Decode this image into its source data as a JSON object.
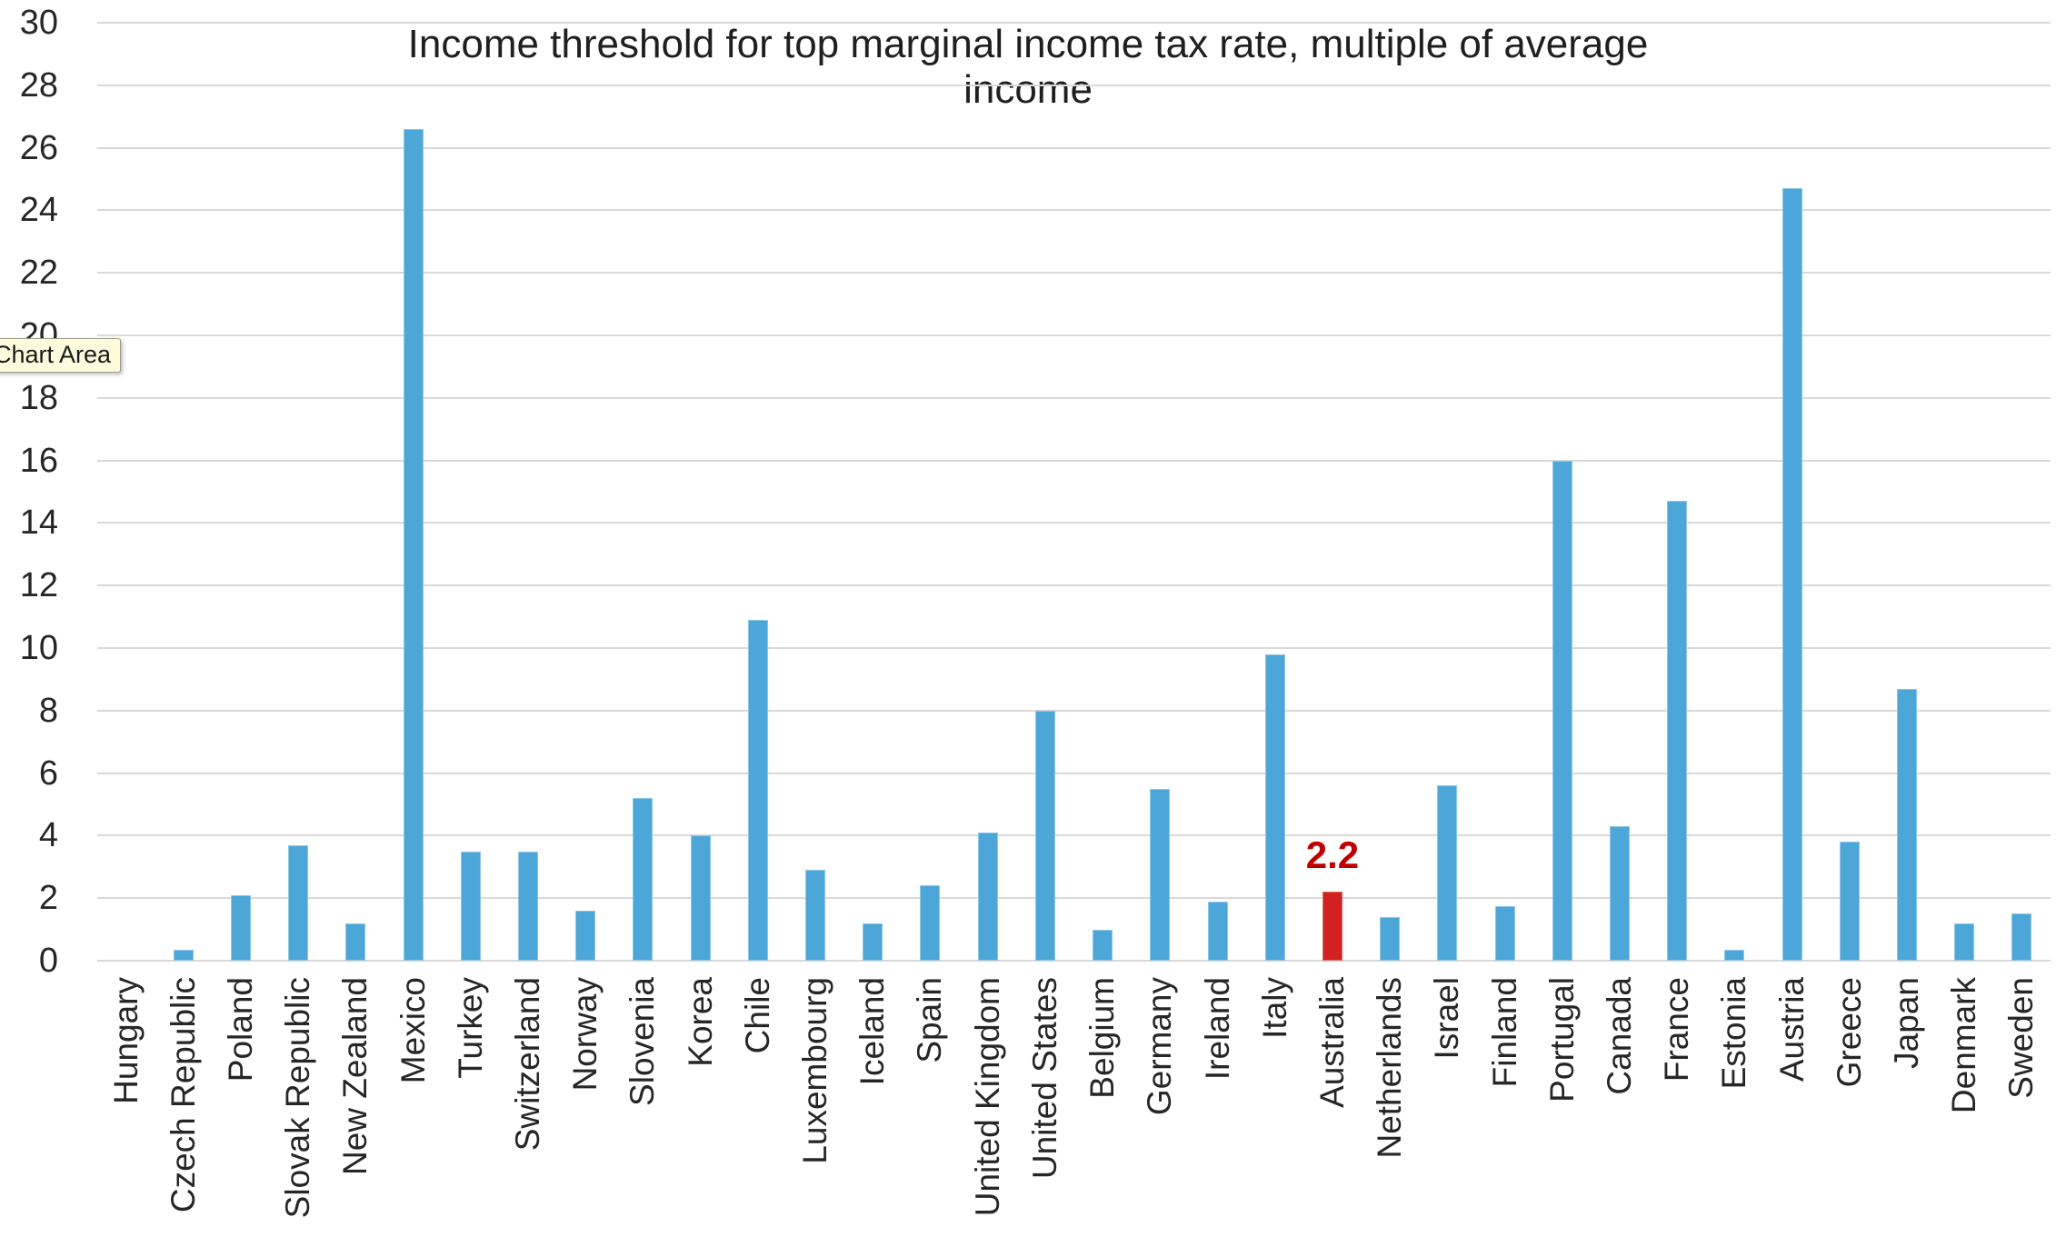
{
  "tooltip": {
    "text": "Chart Area"
  },
  "chart_data": {
    "type": "bar",
    "title": "Income threshold for top marginal income tax rate, multiple of average income",
    "title_lines": [
      "Income threshold for top marginal income tax rate, multiple of average",
      "income"
    ],
    "xlabel": "",
    "ylabel": "",
    "ylim": [
      0,
      30
    ],
    "y_tick_step": 2,
    "grid": "horizontal",
    "legend_position": "none",
    "bar_color": "#4da6d8",
    "gridline_color": "#d9d9d9",
    "categories": [
      "Hungary",
      "Czech Republic",
      "Poland",
      "Slovak Republic",
      "New Zealand",
      "Mexico",
      "Turkey",
      "Switzerland",
      "Norway",
      "Slovenia",
      "Korea",
      "Chile",
      "Luxembourg",
      "Iceland",
      "Spain",
      "United Kingdom",
      "United States",
      "Belgium",
      "Germany",
      "Ireland",
      "Italy",
      "Australia",
      "Netherlands",
      "Israel",
      "Finland",
      "Portugal",
      "Canada",
      "France",
      "Estonia",
      "Austria",
      "Greece",
      "Japan",
      "Denmark",
      "Sweden"
    ],
    "values": [
      0,
      0.35,
      2.1,
      3.7,
      1.2,
      26.6,
      3.5,
      3.5,
      1.6,
      5.2,
      4.0,
      10.9,
      2.9,
      1.2,
      2.4,
      4.1,
      8.0,
      1.0,
      5.5,
      1.9,
      9.8,
      2.2,
      1.4,
      5.6,
      1.75,
      16.0,
      4.3,
      14.7,
      0.35,
      24.7,
      3.8,
      8.7,
      1.2,
      1.5
    ],
    "highlight": {
      "category": "Australia",
      "value_label": "2.2",
      "bar_color": "#d32020",
      "label_color": "#c00000"
    }
  }
}
